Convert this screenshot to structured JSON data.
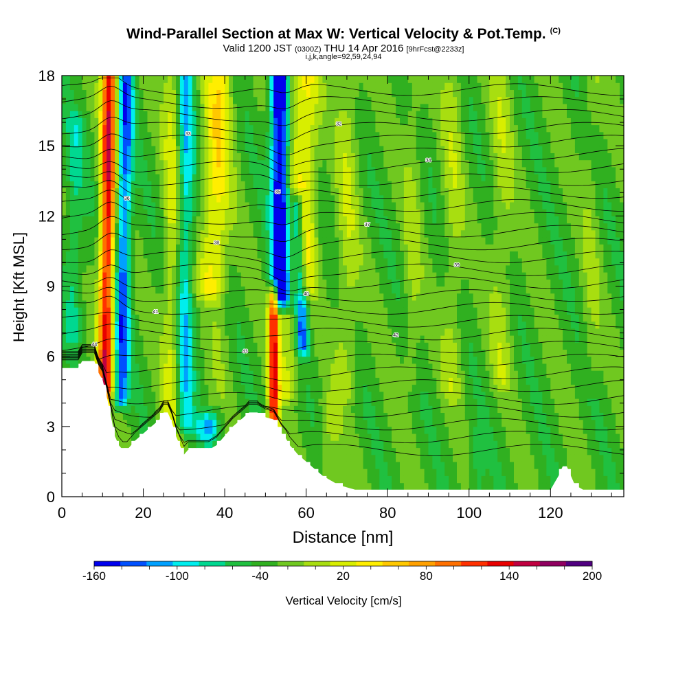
{
  "header": {
    "title": "Wind-Parallel Section at Max W: Vertical Velocity & Pot.Temp.",
    "copyright": "(C)",
    "valid_a": "Valid 1200 JST",
    "valid_zulu": "(0300Z)",
    "valid_b": "THU 14 Apr 2016",
    "forecast": "[9hrFcst@2233z]",
    "indices": "i,j,k,angle=92,59,24,94"
  },
  "chart_data": {
    "type": "heatmap",
    "title": "Wind-Parallel Section at Max W: Vertical Velocity & Pot.Temp.",
    "xlabel": "Distance [nm]",
    "ylabel": "Height [Kft MSL]",
    "xlim": [
      0,
      138
    ],
    "ylim": [
      0,
      18
    ],
    "xticks": [
      0,
      20,
      40,
      60,
      80,
      100,
      120
    ],
    "yticks": [
      0,
      3,
      6,
      9,
      12,
      15,
      18
    ],
    "colorbar": {
      "label": "Vertical Velocity [cm/s]",
      "ticks": [
        -160,
        -100,
        -40,
        20,
        80,
        140,
        200
      ],
      "levels": [
        -160,
        -140,
        -120,
        -100,
        -80,
        -60,
        -40,
        -20,
        0,
        20,
        40,
        60,
        80,
        100,
        120,
        140,
        160,
        180,
        200
      ],
      "colors": [
        "#0000ee",
        "#0050ff",
        "#00a0ff",
        "#00eeee",
        "#00d890",
        "#20c040",
        "#30b020",
        "#70c820",
        "#a8de10",
        "#d8ee00",
        "#ffee00",
        "#ffc800",
        "#ffa000",
        "#ff7000",
        "#ff3000",
        "#e80000",
        "#c00040",
        "#900060",
        "#500080"
      ]
    },
    "terrain_profile": {
      "x": [
        0,
        4,
        5,
        8,
        9,
        10,
        11,
        12,
        13,
        14,
        15,
        16,
        18,
        20,
        22,
        24,
        25,
        26,
        27,
        28,
        29,
        30,
        31,
        34,
        36,
        38,
        40,
        42,
        44,
        46,
        48,
        50,
        52,
        53,
        54,
        55,
        56,
        57,
        58,
        60,
        62,
        64,
        66,
        68,
        70,
        72,
        80,
        90,
        100,
        110,
        120,
        121,
        122,
        123,
        124,
        125,
        126,
        128,
        130,
        134,
        138
      ],
      "height": [
        5.5,
        5.5,
        5.8,
        5.8,
        5.3,
        5.0,
        4.3,
        3.5,
        2.6,
        2.2,
        2.0,
        2.0,
        2.4,
        2.7,
        3.0,
        3.3,
        3.6,
        3.6,
        3.2,
        2.6,
        2.2,
        1.8,
        2.0,
        2.0,
        2.0,
        2.2,
        2.6,
        3.0,
        3.3,
        3.6,
        3.6,
        3.4,
        3.3,
        3.0,
        2.7,
        2.5,
        2.2,
        2.0,
        1.8,
        1.5,
        1.2,
        0.9,
        0.7,
        0.5,
        0.4,
        0.3,
        0.3,
        0.3,
        0.3,
        0.3,
        0.3,
        0.6,
        0.9,
        1.3,
        1.3,
        0.9,
        0.5,
        0.3,
        0.3,
        0.3,
        0.3
      ]
    },
    "w_features": [
      {
        "x_base": 11.0,
        "tilt": 0.08,
        "sigma": 1.3,
        "z_lo": 4.5,
        "z_hi": 18,
        "value": 175
      },
      {
        "x_base": 15.0,
        "tilt": 0.1,
        "sigma": 1.3,
        "z_lo": 4.2,
        "z_hi": 18,
        "value": -105
      },
      {
        "x_base": 27.5,
        "tilt": 0.03,
        "sigma": 1.8,
        "z_lo": 2.5,
        "z_hi": 18,
        "value": 60
      },
      {
        "x_base": 30.0,
        "tilt": 0.02,
        "sigma": 1.6,
        "z_lo": 3.0,
        "z_hi": 18,
        "value": -85
      },
      {
        "x_base": 37.0,
        "tilt": 0.2,
        "sigma": 2.4,
        "z_lo": 4.0,
        "z_hi": 18,
        "value": 75
      },
      {
        "x_base": 36.0,
        "tilt": 0.0,
        "sigma": 2.2,
        "z_lo": 2.8,
        "z_hi": 8.0,
        "value": -70
      },
      {
        "x_base": 54.0,
        "tilt": -0.06,
        "sigma": 1.6,
        "z_lo": 8.5,
        "z_hi": 18,
        "value": -170
      },
      {
        "x_base": 58.5,
        "tilt": -0.25,
        "sigma": 1.1,
        "z_lo": 6.5,
        "z_hi": 12.5,
        "value": -110
      },
      {
        "x_base": 52.0,
        "tilt": 0.0,
        "sigma": 0.9,
        "z_lo": 3.2,
        "z_hi": 8.5,
        "value": 165
      },
      {
        "x_base": 56.0,
        "tilt": 0.1,
        "sigma": 2.0,
        "z_lo": 4.5,
        "z_hi": 18,
        "value": 45
      },
      {
        "x_base": 60.0,
        "tilt": 0.05,
        "sigma": 2.0,
        "z_lo": 9.0,
        "z_hi": 18,
        "value": 60
      },
      {
        "x_base": 70.0,
        "tilt": 0.05,
        "sigma": 2.0,
        "z_lo": 4.5,
        "z_hi": 18,
        "value": 35
      },
      {
        "x_base": 66.0,
        "tilt": 0.05,
        "sigma": 1.8,
        "z_lo": 0.3,
        "z_hi": 4.0,
        "value": 30
      },
      {
        "x_base": 86.0,
        "tilt": 0.05,
        "sigma": 1.6,
        "z_lo": 5.0,
        "z_hi": 18,
        "value": 25
      },
      {
        "x_base": 96.0,
        "tilt": 0.0,
        "sigma": 1.8,
        "z_lo": 4.5,
        "z_hi": 18,
        "value": 30
      },
      {
        "x_base": 108.0,
        "tilt": 0.0,
        "sigma": 2.0,
        "z_lo": 5.0,
        "z_hi": 18,
        "value": 30
      },
      {
        "x_base": 130.0,
        "tilt": 0.0,
        "sigma": 1.6,
        "z_lo": 5.0,
        "z_hi": 18,
        "value": 20
      },
      {
        "x_base": 102.0,
        "tilt": 0.0,
        "sigma": 1.2,
        "z_lo": 0.3,
        "z_hi": 2.5,
        "value": -30
      },
      {
        "x_base": 3.0,
        "tilt": 0.0,
        "sigma": 1.6,
        "z_lo": 7.0,
        "z_hi": 16.0,
        "value": -40
      }
    ],
    "w_background": -25,
    "theta_contours": {
      "count": 29,
      "spacing_kft": 0.55,
      "start_kft": 2.0,
      "labels": [
        "44",
        "43",
        "42",
        "41",
        "40",
        "39",
        "38",
        "37",
        "36",
        "35",
        "34",
        "33",
        "32"
      ]
    },
    "grid": false,
    "legend": "bottom"
  }
}
